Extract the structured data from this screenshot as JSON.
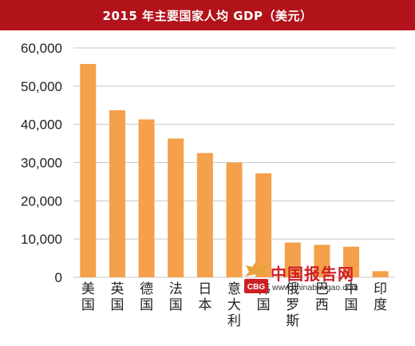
{
  "chart_data": {
    "type": "bar",
    "title": "2015 年主要国家人均 GDP（美元）",
    "categories": [
      "美国",
      "英国",
      "德国",
      "法国",
      "日本",
      "意大利",
      "韩国",
      "俄罗斯",
      "巴西",
      "中国",
      "印度"
    ],
    "values": [
      55800,
      43700,
      41300,
      36300,
      32500,
      30000,
      27200,
      9100,
      8500,
      8000,
      1600
    ],
    "ylim": [
      0,
      60000
    ],
    "yticks": [
      0,
      10000,
      20000,
      30000,
      40000,
      50000,
      60000
    ],
    "ytick_labels": [
      "0",
      "10,000",
      "20,000",
      "30,000",
      "40,000",
      "50,000",
      "60,000"
    ],
    "xlabel": "",
    "ylabel": "",
    "grid": true,
    "bar_color": "#f5a04a",
    "grid_color": "#c8c8c8"
  },
  "header": {
    "title": "2015 年主要国家人均 GDP（美元）",
    "background": "#b2131a"
  },
  "watermark": {
    "cn_text": "中国报告网",
    "url_text": "www.chinabaogao.com",
    "logo_icon": "chinabaogao-logo-icon",
    "logo_text": "CBG"
  }
}
